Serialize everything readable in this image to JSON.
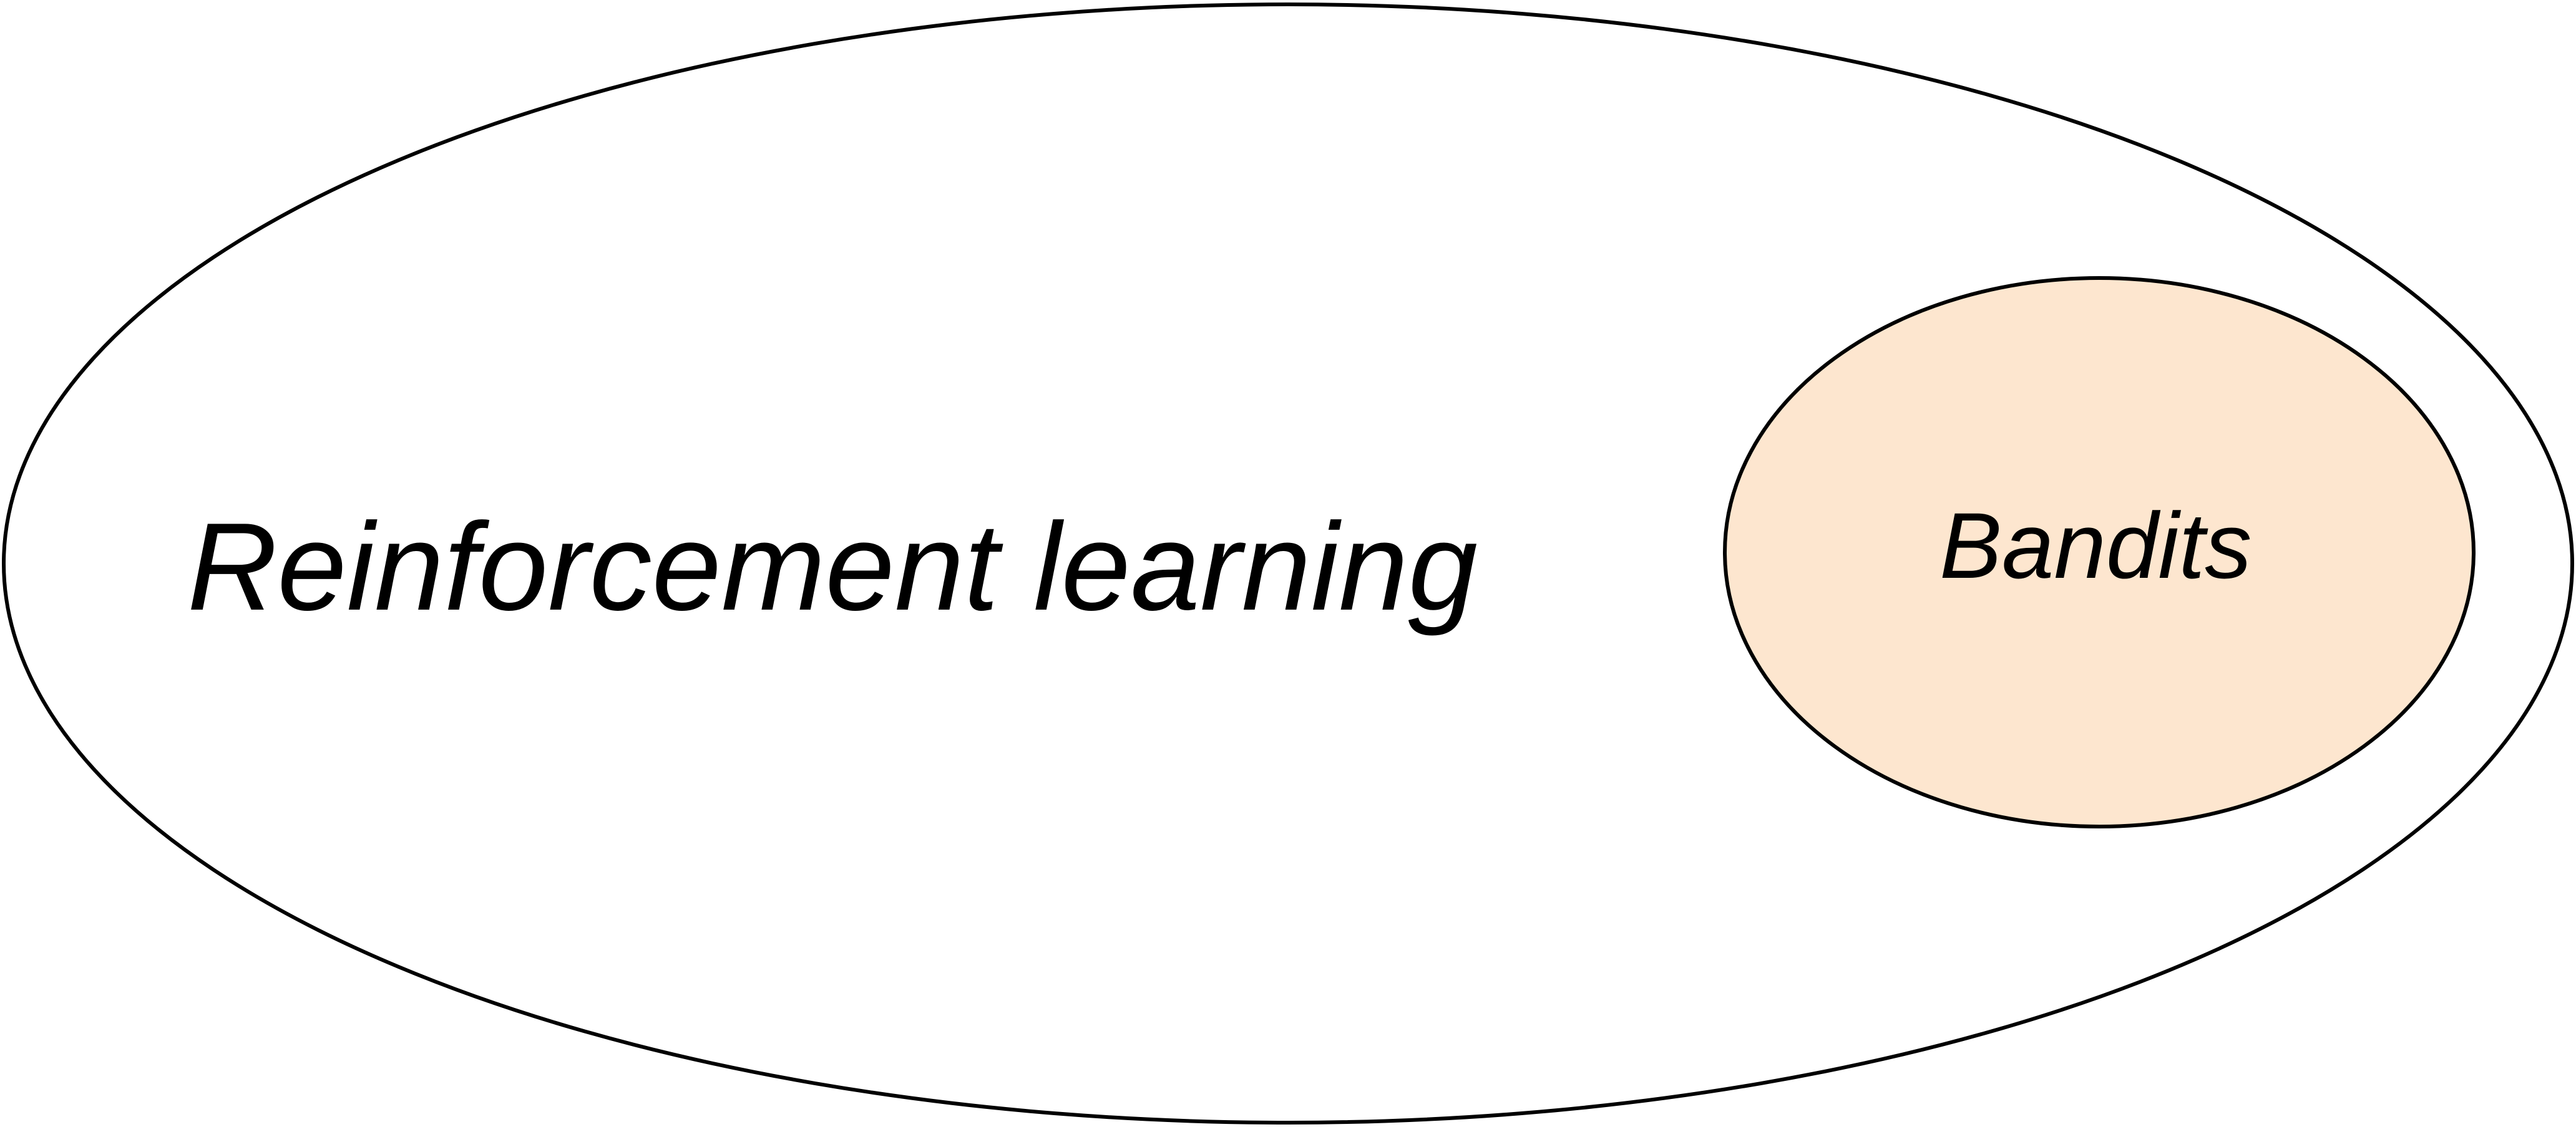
{
  "diagram": {
    "outer_set": {
      "label": "Reinforcement learning",
      "fill": "#ffffff",
      "stroke": "#000000"
    },
    "inner_set": {
      "label": "Bandits",
      "fill": "#fde6cf",
      "stroke": "#000000"
    }
  }
}
